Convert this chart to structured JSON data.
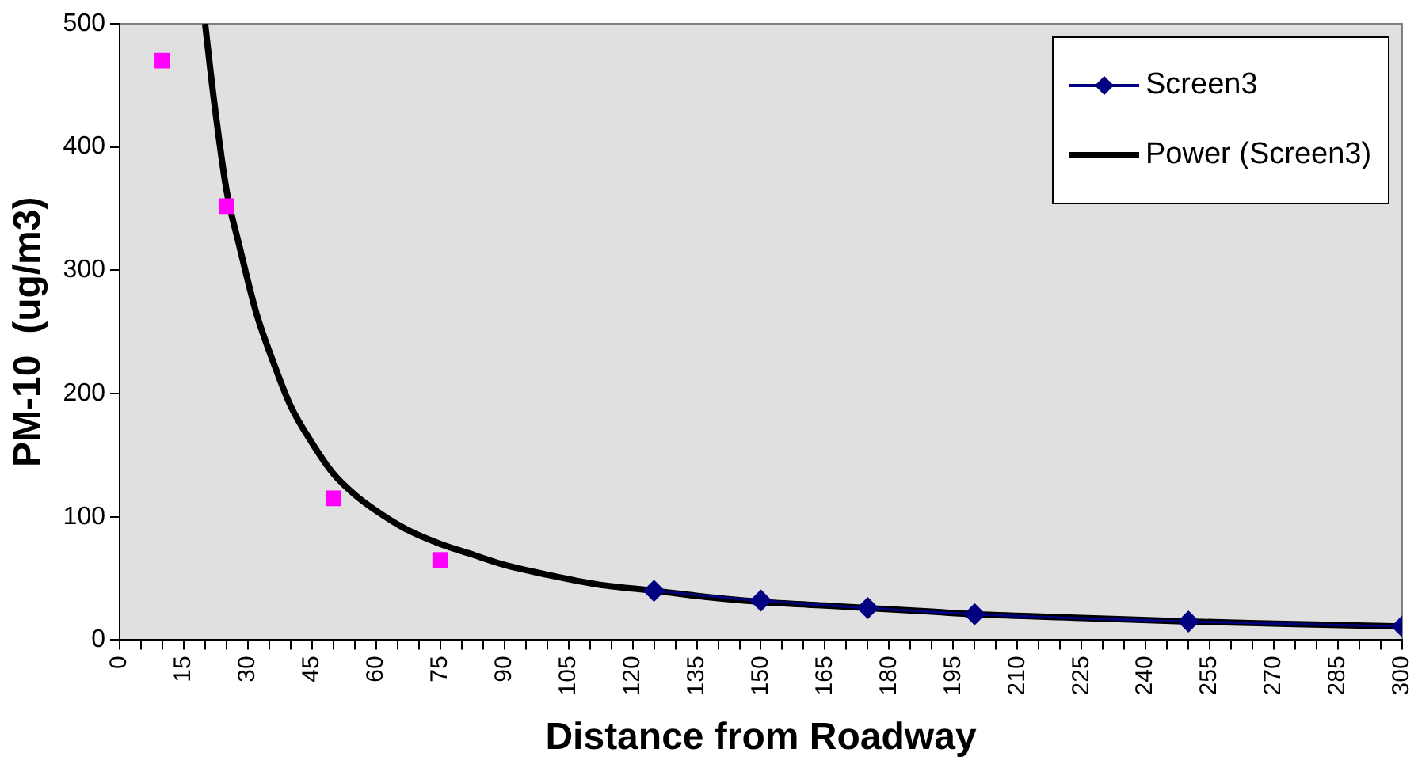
{
  "chart_data": {
    "type": "scatter",
    "xlabel": "Distance from Roadway",
    "ylabel": "PM-10  (ug/m3)",
    "xlim": [
      0,
      300
    ],
    "xticks": [
      0,
      {
        "value": 5,
        "label": null
      },
      {
        "value": 10,
        "label": null
      },
      15,
      {
        "value": 20,
        "label": null
      },
      {
        "value": 25,
        "label": null
      },
      30,
      {
        "value": 35,
        "label": null
      },
      {
        "value": 40,
        "label": null
      },
      45,
      {
        "value": 50,
        "label": null
      },
      {
        "value": 55,
        "label": null
      },
      60,
      {
        "value": 65,
        "label": null
      },
      {
        "value": 70,
        "label": null
      },
      75,
      {
        "value": 80,
        "label": null
      },
      {
        "value": 85,
        "label": null
      },
      90,
      {
        "value": 95,
        "label": null
      },
      {
        "value": 100,
        "label": null
      },
      105,
      {
        "value": 110,
        "label": null
      },
      {
        "value": 115,
        "label": null
      },
      120,
      {
        "value": 125,
        "label": null
      },
      {
        "value": 130,
        "label": null
      },
      135,
      {
        "value": 140,
        "label": null
      },
      {
        "value": 145,
        "label": null
      },
      150,
      {
        "value": 155,
        "label": null
      },
      {
        "value": 160,
        "label": null
      },
      165,
      {
        "value": 170,
        "label": null
      },
      {
        "value": 175,
        "label": null
      },
      180,
      {
        "value": 185,
        "label": null
      },
      {
        "value": 190,
        "label": null
      },
      195,
      {
        "value": 200,
        "label": null
      },
      {
        "value": 205,
        "label": null
      },
      210,
      {
        "value": 215,
        "label": null
      },
      {
        "value": 220,
        "label": null
      },
      225,
      {
        "value": 230,
        "label": null
      },
      {
        "value": 235,
        "label": null
      },
      240,
      {
        "value": 245,
        "label": null
      },
      {
        "value": 250,
        "label": null
      },
      255,
      {
        "value": 260,
        "label": null
      },
      {
        "value": 265,
        "label": null
      },
      270,
      {
        "value": 275,
        "label": null
      },
      {
        "value": 280,
        "label": null
      },
      285,
      {
        "value": 290,
        "label": null
      },
      {
        "value": 295,
        "label": null
      },
      300
    ],
    "ylim": [
      0,
      500
    ],
    "yticks": [
      0,
      100,
      200,
      300,
      400,
      500
    ],
    "grid": false,
    "legend": "top right",
    "series": [
      {
        "name": "Screen3",
        "type": "line",
        "color": "#000080",
        "marker": "diamond",
        "line_style": "solid",
        "x": [
          125,
          150,
          175,
          200,
          250,
          300
        ],
        "values": [
          40,
          32,
          26,
          21,
          15,
          11
        ]
      },
      {
        "type": "scatter",
        "color": "#ff00ff",
        "marker": "square",
        "x": [
          10,
          25,
          50,
          75
        ],
        "values": [
          470,
          352,
          115,
          65
        ]
      },
      {
        "name": "Power (Screen3)",
        "type": "line",
        "color": "#000000",
        "marker": "none",
        "line_style": "solid",
        "x": [
          20,
          22,
          25,
          28,
          32,
          36,
          40,
          45,
          50,
          55,
          60,
          67,
          75,
          82,
          90,
          100,
          112,
          125,
          140,
          150,
          165,
          175,
          190,
          200,
          225,
          250,
          275,
          300
        ],
        "values": [
          500,
          440,
          365,
          320,
          265,
          225,
          190,
          160,
          135,
          118,
          105,
          90,
          78,
          70,
          61,
          53,
          45,
          40,
          34,
          31,
          28,
          26,
          23,
          21,
          18,
          15,
          13,
          11
        ]
      }
    ]
  }
}
